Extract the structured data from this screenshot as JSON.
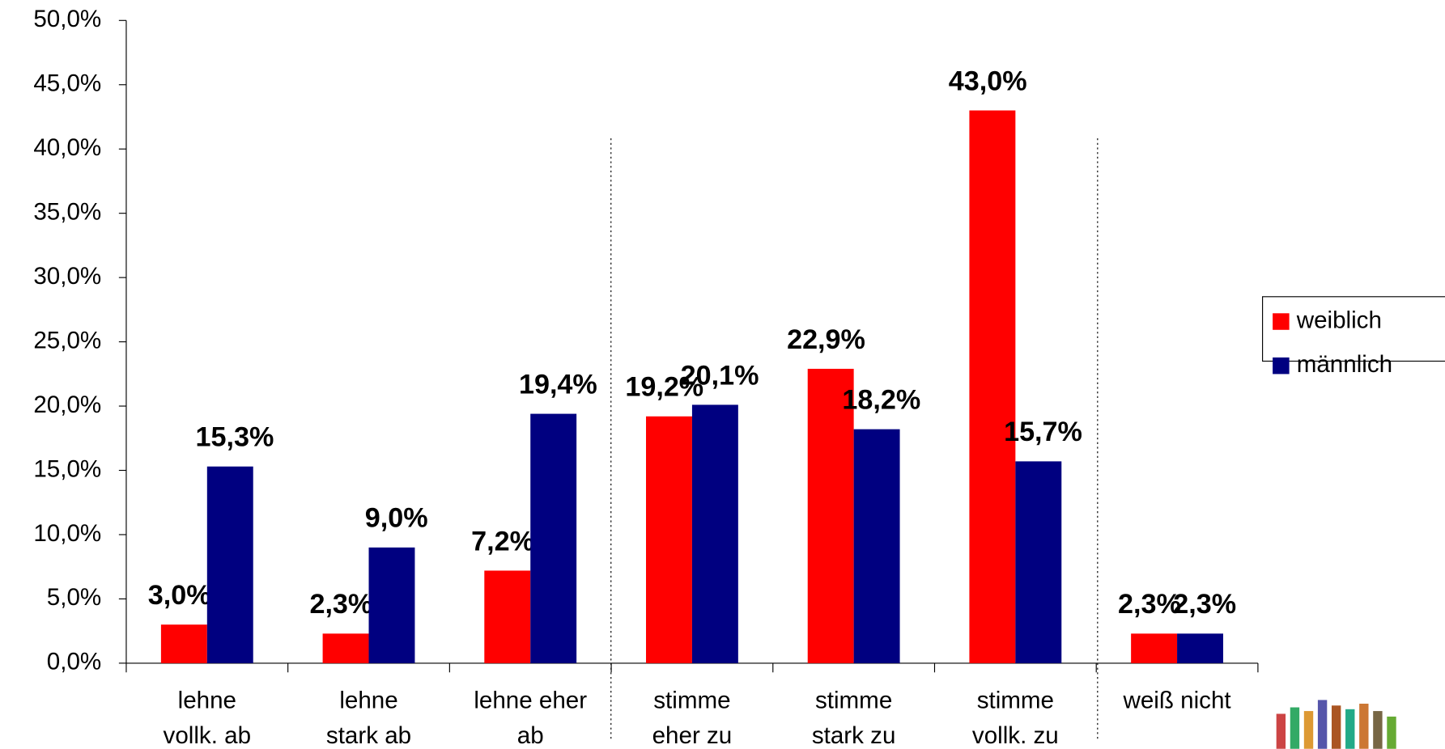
{
  "chart_data": {
    "type": "bar",
    "categories": [
      [
        "lehne",
        "vollk. ab"
      ],
      [
        "lehne",
        "stark ab"
      ],
      [
        "lehne eher",
        "ab"
      ],
      [
        "stimme",
        "eher zu"
      ],
      [
        "stimme",
        "stark zu"
      ],
      [
        "stimme",
        "vollk. zu"
      ],
      [
        "weiß  nicht"
      ]
    ],
    "series": [
      {
        "name": "weiblich",
        "color": "#ff0000",
        "values": [
          3.0,
          2.3,
          7.2,
          19.2,
          22.9,
          43.0,
          2.3
        ],
        "value_labels": [
          "3,0%",
          "2,3%",
          "7,2%",
          "19,2%",
          "22,9%",
          "43,0%",
          "2,3%"
        ]
      },
      {
        "name": "männlich",
        "color": "#000080",
        "values": [
          15.3,
          9.0,
          19.4,
          20.1,
          18.2,
          15.7,
          2.3
        ],
        "value_labels": [
          "15,3%",
          "9,0%",
          "19,4%",
          "20,1%",
          "18,2%",
          "15,7%",
          "2,3%"
        ]
      }
    ],
    "ylim": [
      0,
      50
    ],
    "yticks": [
      {
        "value": 0,
        "label": "0,0%"
      },
      {
        "value": 5,
        "label": "5,0%"
      },
      {
        "value": 10,
        "label": "10,0%"
      },
      {
        "value": 15,
        "label": "15,0%"
      },
      {
        "value": 20,
        "label": "20,0%"
      },
      {
        "value": 25,
        "label": "25,0%"
      },
      {
        "value": 30,
        "label": "30,0%"
      },
      {
        "value": 35,
        "label": "35,0%"
      },
      {
        "value": 40,
        "label": "40,0%"
      },
      {
        "value": 45,
        "label": "45,0%"
      },
      {
        "value": 50,
        "label": "50,0%"
      }
    ],
    "grid": false,
    "legend": "right"
  }
}
